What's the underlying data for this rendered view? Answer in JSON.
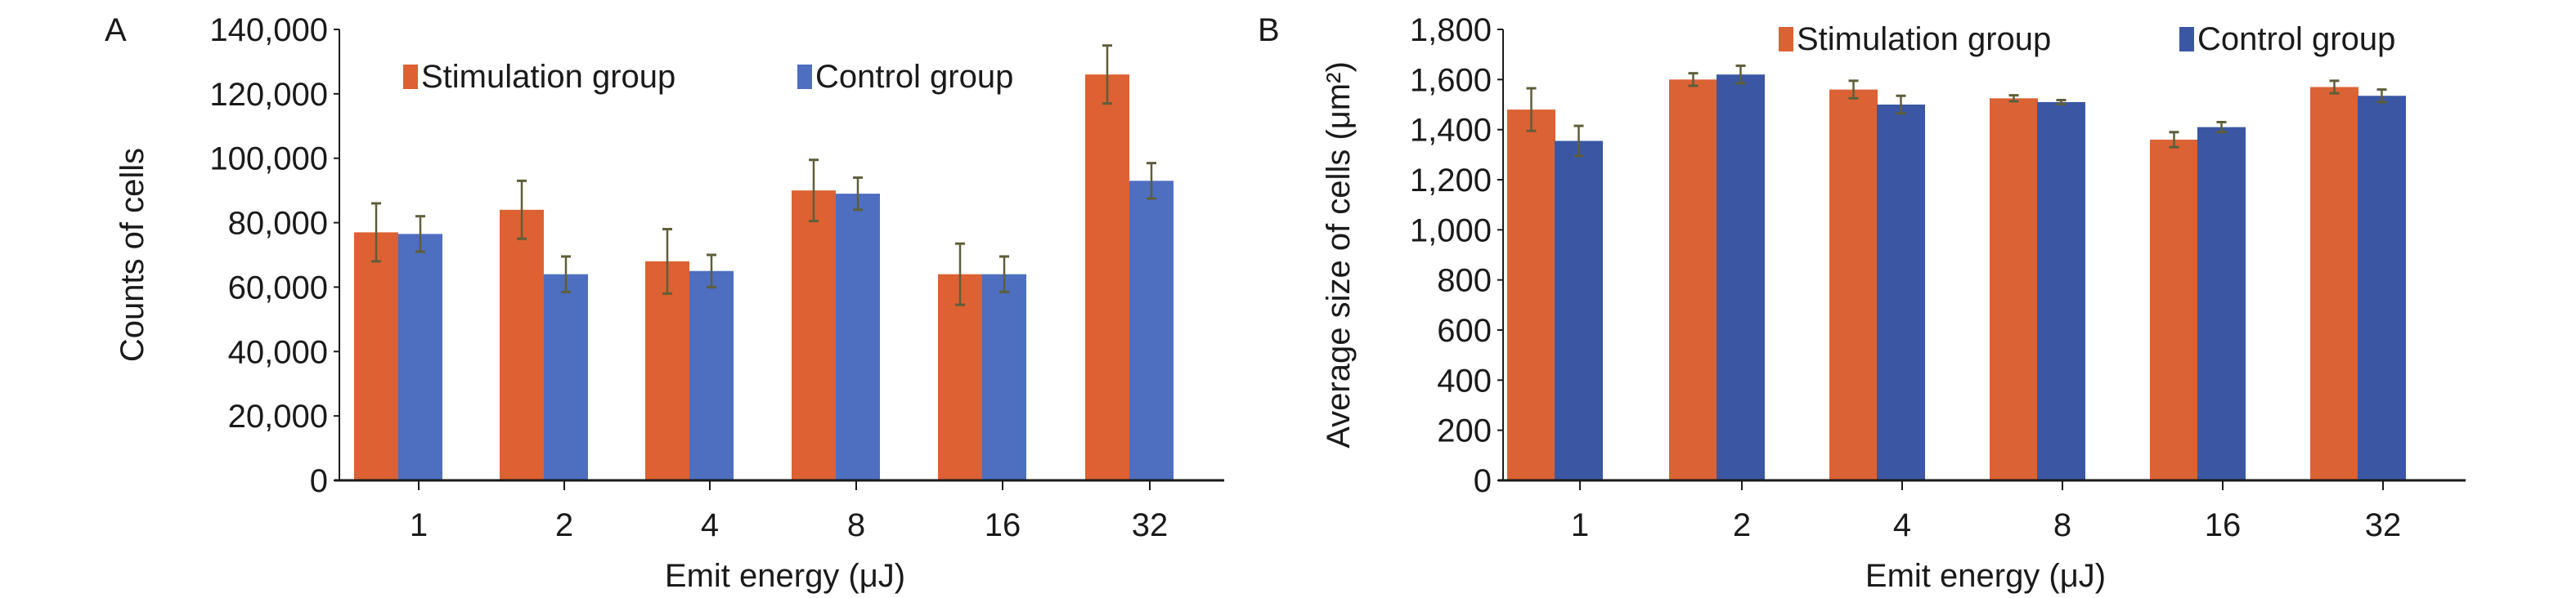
{
  "colors": {
    "stim_a": "#DD6132",
    "ctrl_a": "#4E6EC0",
    "stim_b": "#DB6234",
    "ctrl_b": "#3B57A3",
    "error": "#5e5e3a",
    "axis": "#1a1a1a"
  },
  "chart_data": [
    {
      "panel": "A",
      "type": "bar",
      "xlabel": "Emit energy (μJ)",
      "ylabel": "Counts of cells",
      "categories": [
        "1",
        "2",
        "4",
        "8",
        "16",
        "32"
      ],
      "ylim": [
        0,
        140000
      ],
      "yticks": [
        "0",
        "20,000",
        "40,000",
        "60,000",
        "80,000",
        "100,000",
        "120,000",
        "140,000"
      ],
      "ytick_values": [
        0,
        20000,
        40000,
        60000,
        80000,
        100000,
        120000,
        140000
      ],
      "legend_position": "top",
      "grid": false,
      "series": [
        {
          "name": "Stimulation group",
          "values": [
            77000,
            84000,
            68000,
            90000,
            64000,
            126000
          ],
          "errors": [
            9000,
            9000,
            10000,
            9500,
            9500,
            9000
          ]
        },
        {
          "name": "Control group",
          "values": [
            76500,
            64000,
            65000,
            89000,
            64000,
            93000
          ],
          "errors": [
            5500,
            5500,
            5000,
            5000,
            5500,
            5500
          ]
        }
      ]
    },
    {
      "panel": "B",
      "type": "bar",
      "xlabel": "Emit energy (μJ)",
      "ylabel": "Average size of cells (μm²)",
      "categories": [
        "1",
        "2",
        "4",
        "8",
        "16",
        "32"
      ],
      "ylim": [
        0,
        1800
      ],
      "yticks": [
        "0",
        "200",
        "400",
        "600",
        "800",
        "1,000",
        "1,200",
        "1,400",
        "1,600",
        "1,800"
      ],
      "ytick_values": [
        0,
        200,
        400,
        600,
        800,
        1000,
        1200,
        1400,
        1600,
        1800
      ],
      "legend_position": "top-right",
      "grid": false,
      "series": [
        {
          "name": "Stimulation group",
          "values": [
            1480,
            1600,
            1560,
            1525,
            1360,
            1570
          ],
          "errors": [
            85,
            25,
            35,
            12,
            30,
            25
          ]
        },
        {
          "name": "Control group",
          "values": [
            1355,
            1620,
            1500,
            1510,
            1410,
            1535
          ],
          "errors": [
            60,
            35,
            35,
            8,
            20,
            25
          ]
        }
      ]
    }
  ]
}
